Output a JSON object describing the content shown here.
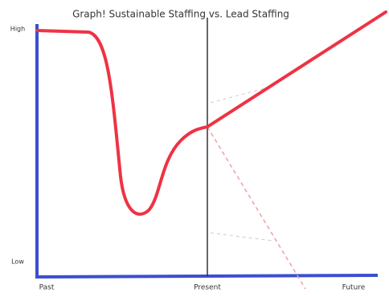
{
  "header": {
    "title": "Graph! Sustainable Staffing vs. Lead Staffing"
  },
  "y_axis": {
    "top": "High",
    "bottom": "Low"
  },
  "x_axis": {
    "labels": [
      "Past",
      "Present",
      "Future"
    ]
  }
}
